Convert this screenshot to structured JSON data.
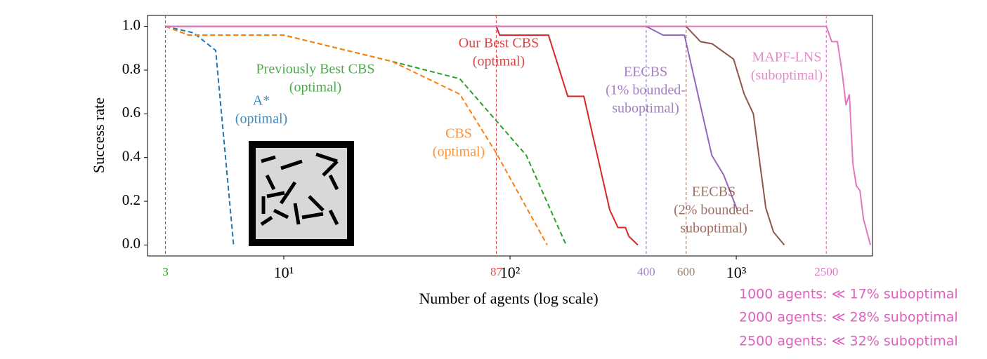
{
  "chart_data": {
    "type": "line",
    "x_label": "Number of agents (log scale)",
    "y_label": "Success rate",
    "x_scale": "log",
    "xlim": [
      2.5,
      4000
    ],
    "ylim": [
      -0.05,
      1.05
    ],
    "xticks": [
      {
        "value": 10,
        "label": "10¹"
      },
      {
        "value": 100,
        "label": "10²"
      },
      {
        "value": 1000,
        "label": "10³"
      }
    ],
    "yticks": [
      {
        "value": 0,
        "label": "0.0"
      },
      0.2,
      0.4,
      0.6,
      0.8,
      {
        "value": 1,
        "label": "1.0"
      }
    ],
    "vlines": [
      {
        "value": 3,
        "color": "#2ca02c"
      },
      {
        "value": 87,
        "color": "#e05050"
      },
      {
        "value": 400,
        "color": "#a080d0"
      },
      {
        "value": 600,
        "color": "#a08070"
      },
      {
        "value": 2500,
        "color": "#e377c2"
      }
    ],
    "series": [
      {
        "label": [
          "A*",
          "(optimal)"
        ],
        "color": "#1f77b4",
        "dashed": true,
        "x": [
          3,
          4,
          5,
          6
        ],
        "values": [
          1,
          0.97,
          0.89,
          0
        ]
      },
      {
        "label": [
          "Previously Best CBS",
          "(optimal)"
        ],
        "color": "#2ca02c",
        "dashed": true,
        "x": [
          3,
          3.8,
          10,
          30,
          60,
          85,
          118,
          177
        ],
        "values": [
          1,
          0.96,
          0.96,
          0.84,
          0.76,
          0.58,
          0.41,
          0
        ]
      },
      {
        "label": [
          "CBS",
          "(optimal)"
        ],
        "color": "#ff7f0e",
        "dashed": true,
        "x": [
          3,
          3.8,
          10,
          30,
          60,
          87,
          146
        ],
        "values": [
          1,
          0.96,
          0.96,
          0.84,
          0.69,
          0.42,
          0
        ]
      },
      {
        "label": [
          "Our Best CBS",
          "(optimal)"
        ],
        "color": "#d62728",
        "dashed": false,
        "x": [
          3,
          87,
          90,
          148,
          180,
          212,
          276,
          300,
          324,
          335,
          367
        ],
        "values": [
          1,
          1,
          0.96,
          0.96,
          0.68,
          0.68,
          0.16,
          0.08,
          0.08,
          0.04,
          0
        ]
      },
      {
        "label": [
          "EECBS",
          "(1% bounded-",
          "suboptimal)"
        ],
        "color": "#9467bd",
        "dashed": false,
        "x": [
          3,
          400,
          475,
          590,
          780,
          880,
          1010
        ],
        "values": [
          1,
          1,
          0.96,
          0.96,
          0.41,
          0.32,
          0.16
        ]
      },
      {
        "label": [
          "EECBS",
          "(2% bounded-",
          "suboptimal)"
        ],
        "color": "#8c564b",
        "dashed": false,
        "x": [
          3,
          600,
          695,
          783,
          973,
          1084,
          1190,
          1350,
          1460,
          1630
        ],
        "values": [
          1,
          1,
          0.93,
          0.92,
          0.85,
          0.69,
          0.6,
          0.17,
          0.06,
          0
        ]
      },
      {
        "label": [
          "MAPF-LNS",
          "(suboptimal)"
        ],
        "color": "#e377c2",
        "dashed": false,
        "x": [
          3,
          2500,
          2642,
          2800,
          2945,
          3052,
          3162,
          3277,
          3396,
          3520,
          3648,
          3919
        ],
        "values": [
          1,
          1,
          0.93,
          0.93,
          0.78,
          0.64,
          0.69,
          0.37,
          0.27,
          0.25,
          0.12,
          0
        ]
      }
    ],
    "notes": [
      "1000 agents: ≪ 17% suboptimal",
      "2000 agents: ≪ 28% suboptimal",
      "2500 agents: ≪ 32% suboptimal"
    ]
  }
}
